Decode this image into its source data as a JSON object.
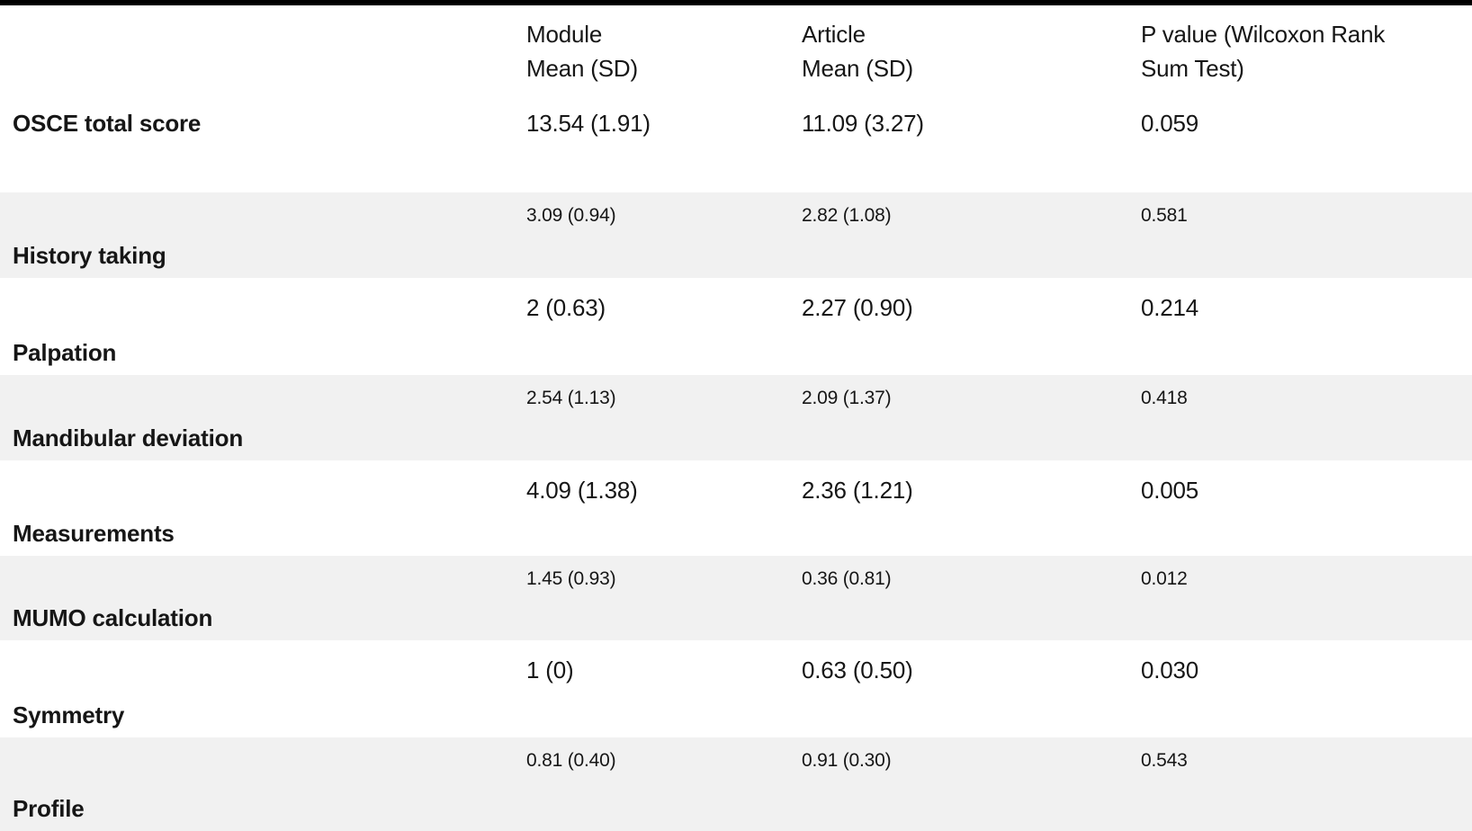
{
  "table": {
    "header": {
      "module": [
        "Module",
        "Mean (SD)"
      ],
      "article": [
        "Article",
        "Mean (SD)"
      ],
      "p_value": [
        "P value (Wilcoxon Rank",
        "Sum Test)"
      ]
    },
    "rows": [
      {
        "label": "OSCE total score",
        "module": "13.54 (1.91)",
        "article": "11.09 (3.27)",
        "p_value": "0.059"
      },
      {
        "label": "History taking",
        "module": "3.09 (0.94)",
        "article": "2.82 (1.08)",
        "p_value": "0.581"
      },
      {
        "label": "Palpation",
        "module": "2 (0.63)",
        "article": "2.27 (0.90)",
        "p_value": "0.214"
      },
      {
        "label": "Mandibular deviation",
        "module": "2.54 (1.13)",
        "article": "2.09 (1.37)",
        "p_value": "0.418"
      },
      {
        "label": "Measurements",
        "module": "4.09 (1.38)",
        "article": "2.36 (1.21)",
        "p_value": "0.005"
      },
      {
        "label": "MUMO calculation",
        "module": "1.45 (0.93)",
        "article": "0.36 (0.81)",
        "p_value": "0.012"
      },
      {
        "label": "Symmetry",
        "module": "1 (0)",
        "article": "0.63 (0.50)",
        "p_value": "0.030"
      },
      {
        "label": "Profile",
        "module": "0.81 (0.40)",
        "article": "0.91 (0.30)",
        "p_value": "0.543"
      }
    ]
  },
  "colors": {
    "top_border": "#000000",
    "shaded_row": "#f1f1f1",
    "text": "#161616"
  }
}
